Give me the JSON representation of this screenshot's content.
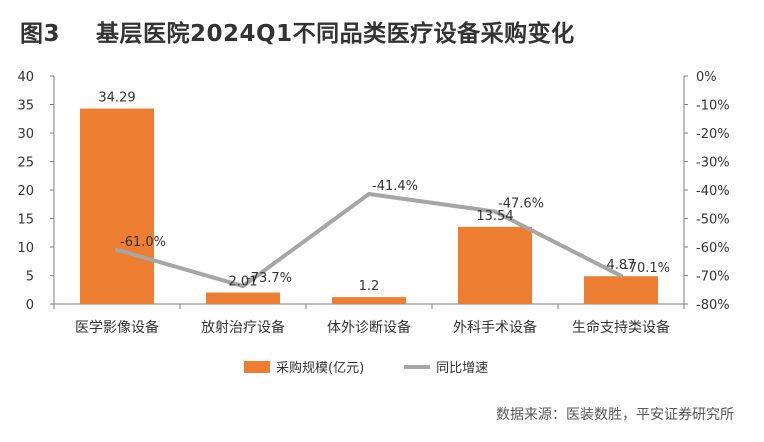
{
  "figure": {
    "label": "图3",
    "title": "基层医院2024Q1不同品类医疗设备采购变化"
  },
  "chart_data": {
    "type": "bar",
    "categories": [
      "医学影像设备",
      "放射治疗设备",
      "体外诊断设备",
      "外科手术设备",
      "生命支持类设备"
    ],
    "series": [
      {
        "name": "采购规模(亿元)",
        "type": "bar",
        "axis": "left",
        "values": [
          34.29,
          2.01,
          1.2,
          13.54,
          4.87
        ],
        "labels": [
          "34.29",
          "2.01",
          "1.2",
          "13.54",
          "4.87"
        ],
        "color": "#ED7D31"
      },
      {
        "name": "同比增速",
        "type": "line",
        "axis": "right",
        "values": [
          -61.0,
          -73.7,
          -41.4,
          -47.6,
          -70.1
        ],
        "labels": [
          "-61.0%",
          "-73.7%",
          "-41.4%",
          "-47.6%",
          "-70.1%"
        ],
        "color": "#A6A6A6"
      }
    ],
    "y_left": {
      "range": [
        0,
        40
      ],
      "ticks": [
        "0",
        "5",
        "10",
        "15",
        "20",
        "25",
        "30",
        "35",
        "40"
      ]
    },
    "y_right": {
      "range": [
        -80,
        0
      ],
      "ticks": [
        "-80%",
        "-70%",
        "-60%",
        "-50%",
        "-40%",
        "-30%",
        "-20%",
        "-10%",
        "0%"
      ]
    },
    "grid": false,
    "legend_position": "bottom"
  },
  "source": "数据来源：医装数胜，平安证券研究所"
}
